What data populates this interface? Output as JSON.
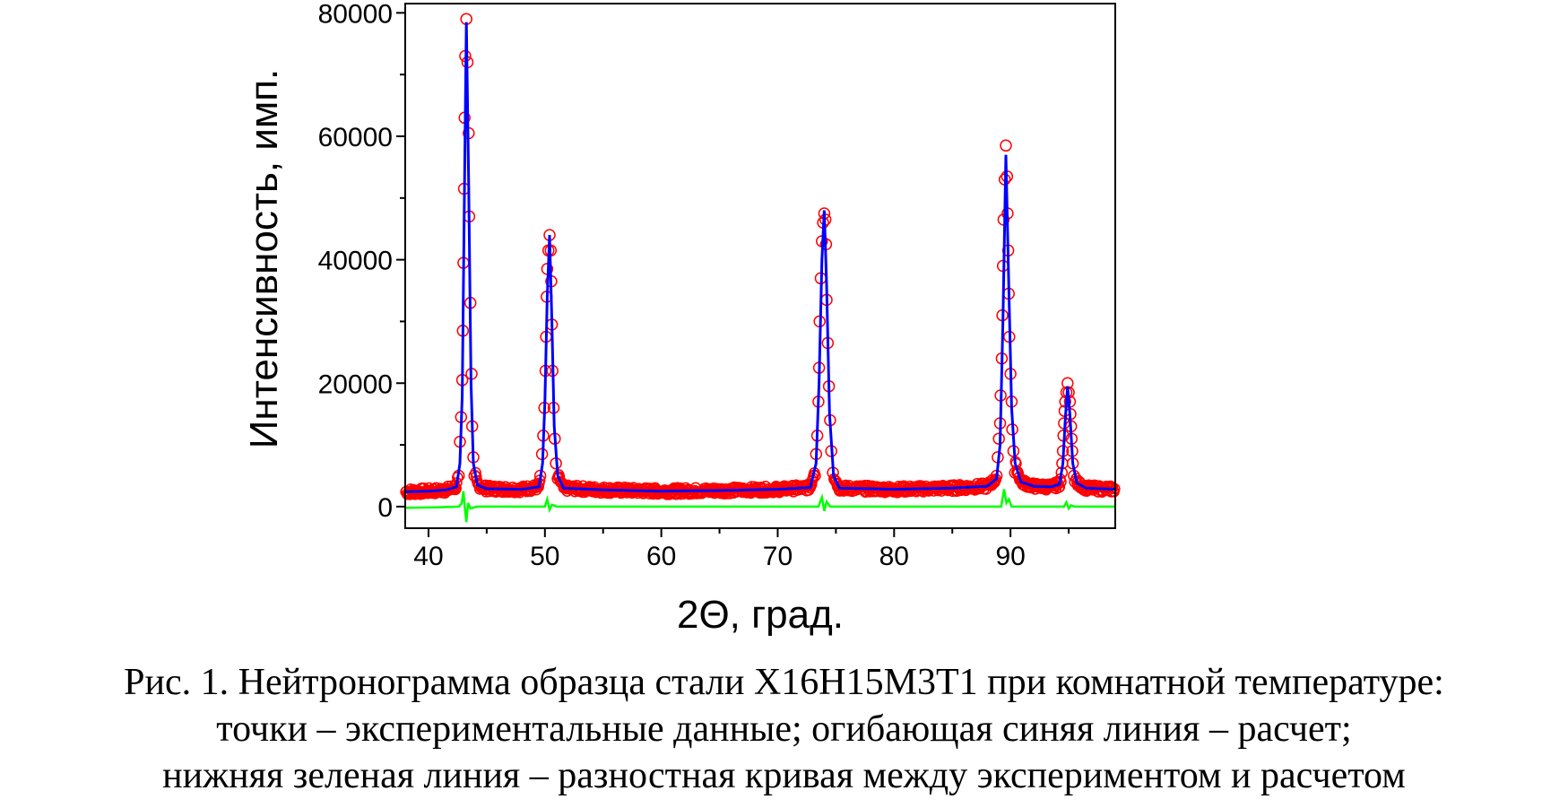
{
  "chart_data": {
    "type": "scatter",
    "xlabel": "2Θ, град.",
    "ylabel": "Интенсивность, имп.",
    "xlim": [
      38,
      99
    ],
    "ylim": [
      -3500,
      81500
    ],
    "x_ticks": [
      40,
      50,
      60,
      70,
      80,
      90
    ],
    "y_ticks": [
      0,
      20000,
      40000,
      60000,
      80000
    ],
    "grid": false,
    "legend": "none",
    "colors": {
      "experimental": "#ff0000",
      "calculated": "#0000ff",
      "difference": "#00ff00"
    },
    "peaks": [
      {
        "x": 43.3,
        "y": 79000
      },
      {
        "x": 50.4,
        "y": 44000
      },
      {
        "x": 74.0,
        "y": 48000
      },
      {
        "x": 89.7,
        "y": 58000
      },
      {
        "x": 94.9,
        "y": 20000
      }
    ],
    "series": [
      {
        "marker": "open-circle",
        "points": [
          [
            42.6,
            5000
          ],
          [
            42.7,
            10500
          ],
          [
            42.8,
            14500
          ],
          [
            42.9,
            20500
          ],
          [
            42.95,
            28500
          ],
          [
            43.0,
            39500
          ],
          [
            43.05,
            51500
          ],
          [
            43.1,
            63000
          ],
          [
            43.15,
            73000
          ],
          [
            43.25,
            79000
          ],
          [
            43.35,
            72000
          ],
          [
            43.45,
            60500
          ],
          [
            43.5,
            47000
          ],
          [
            43.6,
            33000
          ],
          [
            43.7,
            21500
          ],
          [
            43.75,
            13000
          ],
          [
            43.85,
            8000
          ],
          [
            43.95,
            5000
          ],
          [
            49.6,
            5000
          ],
          [
            49.75,
            8500
          ],
          [
            49.85,
            11500
          ],
          [
            49.95,
            16000
          ],
          [
            50.05,
            22000
          ],
          [
            50.1,
            27500
          ],
          [
            50.15,
            34000
          ],
          [
            50.2,
            38500
          ],
          [
            50.3,
            41500
          ],
          [
            50.4,
            44000
          ],
          [
            50.5,
            41500
          ],
          [
            50.55,
            36500
          ],
          [
            50.6,
            29500
          ],
          [
            50.65,
            22000
          ],
          [
            50.75,
            16000
          ],
          [
            50.85,
            11000
          ],
          [
            50.95,
            7000
          ],
          [
            51.1,
            4500
          ],
          [
            73.2,
            5000
          ],
          [
            73.3,
            8500
          ],
          [
            73.4,
            11500
          ],
          [
            73.5,
            17000
          ],
          [
            73.55,
            22500
          ],
          [
            73.6,
            30000
          ],
          [
            73.7,
            37000
          ],
          [
            73.8,
            43000
          ],
          [
            73.9,
            46000
          ],
          [
            74.0,
            47500
          ],
          [
            74.1,
            46500
          ],
          [
            74.15,
            42500
          ],
          [
            74.2,
            33500
          ],
          [
            74.3,
            26500
          ],
          [
            74.4,
            19500
          ],
          [
            74.5,
            14000
          ],
          [
            74.6,
            9000
          ],
          [
            74.75,
            5500
          ],
          [
            88.8,
            5000
          ],
          [
            88.9,
            8000
          ],
          [
            89.0,
            11000
          ],
          [
            89.1,
            13500
          ],
          [
            89.15,
            18000
          ],
          [
            89.25,
            24000
          ],
          [
            89.3,
            31000
          ],
          [
            89.35,
            39000
          ],
          [
            89.4,
            46500
          ],
          [
            89.5,
            53000
          ],
          [
            89.6,
            58500
          ],
          [
            89.7,
            53500
          ],
          [
            89.75,
            47500
          ],
          [
            89.8,
            41500
          ],
          [
            89.85,
            34500
          ],
          [
            89.9,
            27500
          ],
          [
            90.0,
            21500
          ],
          [
            90.1,
            17000
          ],
          [
            90.15,
            12500
          ],
          [
            90.25,
            9000
          ],
          [
            90.4,
            5500
          ],
          [
            94.3,
            4000
          ],
          [
            94.4,
            5500
          ],
          [
            94.45,
            7000
          ],
          [
            94.5,
            9000
          ],
          [
            94.55,
            11500
          ],
          [
            94.6,
            13500
          ],
          [
            94.65,
            15500
          ],
          [
            94.7,
            17000
          ],
          [
            94.8,
            18500
          ],
          [
            94.9,
            20000
          ],
          [
            95.0,
            18500
          ],
          [
            95.1,
            17000
          ],
          [
            95.15,
            15000
          ],
          [
            95.2,
            13000
          ],
          [
            95.25,
            11000
          ],
          [
            95.3,
            9000
          ],
          [
            95.35,
            7000
          ],
          [
            95.45,
            5000
          ],
          [
            95.55,
            4000
          ]
        ]
      },
      {
        "line": true,
        "points": [
          [
            38,
            2400
          ],
          [
            40,
            2500
          ],
          [
            41.5,
            2700
          ],
          [
            42.4,
            3200
          ],
          [
            42.7,
            7000
          ],
          [
            42.9,
            18000
          ],
          [
            43.05,
            45000
          ],
          [
            43.25,
            78500
          ],
          [
            43.45,
            52000
          ],
          [
            43.65,
            20000
          ],
          [
            43.85,
            7000
          ],
          [
            44.2,
            3500
          ],
          [
            45,
            2900
          ],
          [
            48,
            2800
          ],
          [
            49.5,
            3200
          ],
          [
            49.8,
            7000
          ],
          [
            50.0,
            17000
          ],
          [
            50.2,
            34000
          ],
          [
            50.4,
            44000
          ],
          [
            50.6,
            30000
          ],
          [
            50.8,
            13000
          ],
          [
            51.1,
            5000
          ],
          [
            51.6,
            3000
          ],
          [
            55,
            2700
          ],
          [
            60,
            2500
          ],
          [
            65,
            2600
          ],
          [
            70,
            2800
          ],
          [
            72.8,
            3100
          ],
          [
            73.3,
            7000
          ],
          [
            73.55,
            20000
          ],
          [
            73.8,
            40000
          ],
          [
            74.0,
            48000
          ],
          [
            74.2,
            36000
          ],
          [
            74.45,
            15000
          ],
          [
            74.8,
            5000
          ],
          [
            75.3,
            3000
          ],
          [
            80,
            2800
          ],
          [
            85,
            3000
          ],
          [
            88,
            3300
          ],
          [
            88.8,
            4500
          ],
          [
            89.1,
            10000
          ],
          [
            89.35,
            30000
          ],
          [
            89.6,
            57000
          ],
          [
            89.85,
            36000
          ],
          [
            90.1,
            16000
          ],
          [
            90.4,
            7000
          ],
          [
            90.9,
            4000
          ],
          [
            92,
            3300
          ],
          [
            93.5,
            3200
          ],
          [
            94.2,
            3600
          ],
          [
            94.5,
            7000
          ],
          [
            94.7,
            14000
          ],
          [
            94.9,
            19500
          ],
          [
            95.1,
            15000
          ],
          [
            95.35,
            7000
          ],
          [
            95.7,
            3800
          ],
          [
            96.5,
            3000
          ],
          [
            99,
            2800
          ]
        ]
      },
      {
        "line": true,
        "points": [
          [
            38,
            -200
          ],
          [
            41,
            -100
          ],
          [
            42.6,
            0
          ],
          [
            42.85,
            500
          ],
          [
            43.0,
            2500
          ],
          [
            43.15,
            -800
          ],
          [
            43.25,
            -2500
          ],
          [
            43.4,
            600
          ],
          [
            43.6,
            -300
          ],
          [
            44.2,
            0
          ],
          [
            50.0,
            0
          ],
          [
            50.2,
            1200
          ],
          [
            50.4,
            -500
          ],
          [
            50.6,
            300
          ],
          [
            51.0,
            0
          ],
          [
            60,
            0
          ],
          [
            73.5,
            0
          ],
          [
            73.8,
            1500
          ],
          [
            74.0,
            -700
          ],
          [
            74.2,
            800
          ],
          [
            74.5,
            0
          ],
          [
            89.2,
            0
          ],
          [
            89.45,
            2800
          ],
          [
            89.65,
            600
          ],
          [
            89.85,
            1200
          ],
          [
            90.1,
            0
          ],
          [
            94.6,
            0
          ],
          [
            94.8,
            700
          ],
          [
            95.0,
            -300
          ],
          [
            95.2,
            200
          ],
          [
            95.5,
            0
          ],
          [
            99,
            0
          ]
        ]
      }
    ]
  },
  "caption": {
    "line1": "Рис. 1. Нейтронограмма образца стали Х16Н15М3Т1 при комнатной температуре:",
    "line2": "точки – экспериментальные данные; огибающая синяя линия – расчет;",
    "line3": "нижняя зеленая линия – разностная кривая между экспериментом и расчетом"
  }
}
